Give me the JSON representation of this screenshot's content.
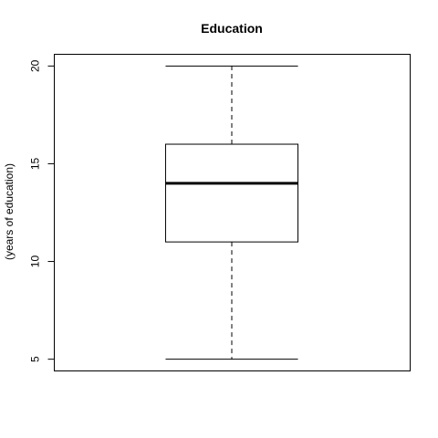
{
  "chart_data": {
    "type": "boxplot",
    "title": "Education",
    "xlabel": "",
    "ylabel": "(years of education)",
    "ylim": [
      4.4,
      20.6
    ],
    "yticks": [
      5,
      10,
      15,
      20
    ],
    "grid": false,
    "legend": "none",
    "boxes": [
      {
        "min": 5,
        "q1": 11,
        "median": 14,
        "q3": 16,
        "max": 20
      }
    ]
  }
}
